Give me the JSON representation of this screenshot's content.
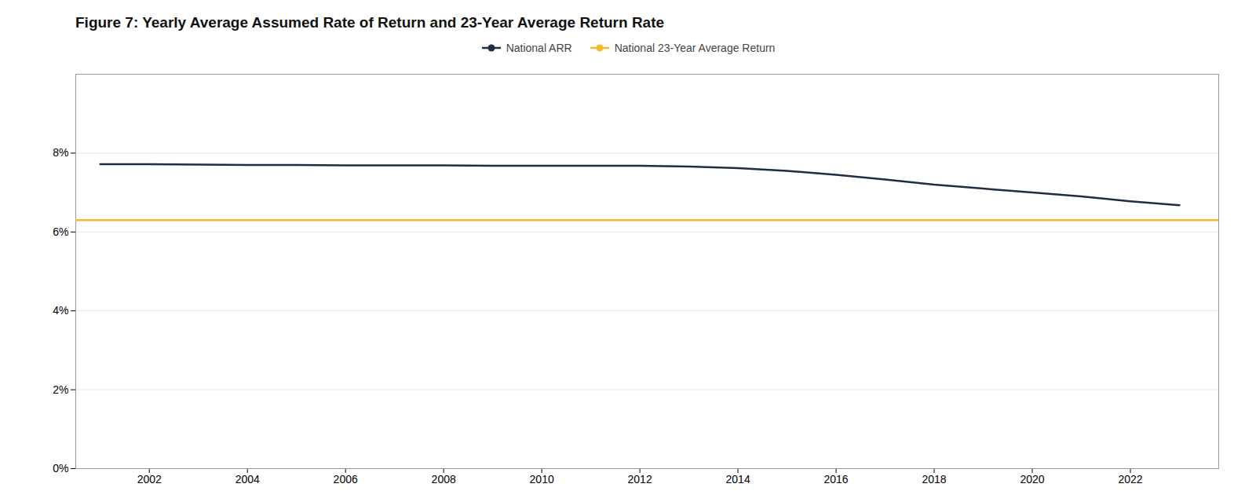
{
  "chart_data": {
    "type": "line",
    "title": "Figure 7: Yearly Average Assumed Rate of Return and 23-Year Average Return Rate",
    "x": [
      2001,
      2002,
      2003,
      2004,
      2005,
      2006,
      2007,
      2008,
      2009,
      2010,
      2011,
      2012,
      2013,
      2014,
      2015,
      2016,
      2017,
      2018,
      2019,
      2020,
      2021,
      2022,
      2023
    ],
    "series": [
      {
        "name": "National ARR",
        "color": "#1e2d40",
        "values": [
          0.0772,
          0.0772,
          0.0771,
          0.077,
          0.077,
          0.0769,
          0.0769,
          0.0769,
          0.0768,
          0.0768,
          0.0768,
          0.0768,
          0.0766,
          0.0762,
          0.0755,
          0.0745,
          0.0733,
          0.072,
          0.071,
          0.07,
          0.069,
          0.0678,
          0.0668
        ]
      },
      {
        "name": "National 23-Year Average Return",
        "color": "#f5b82e",
        "type": "hline",
        "y": 0.063
      }
    ],
    "xlim": [
      2000.5,
      2023.8
    ],
    "xticks": [
      2002,
      2004,
      2006,
      2008,
      2010,
      2012,
      2014,
      2016,
      2018,
      2020,
      2022
    ],
    "ylim": [
      0,
      0.1
    ],
    "yticks": [
      {
        "value": 0,
        "label": "0%"
      },
      {
        "value": 0.02,
        "label": "2%"
      },
      {
        "value": 0.04,
        "label": "4%"
      },
      {
        "value": 0.06,
        "label": "6%"
      },
      {
        "value": 0.08,
        "label": "8%"
      }
    ],
    "grid": "y",
    "legend": "top"
  }
}
